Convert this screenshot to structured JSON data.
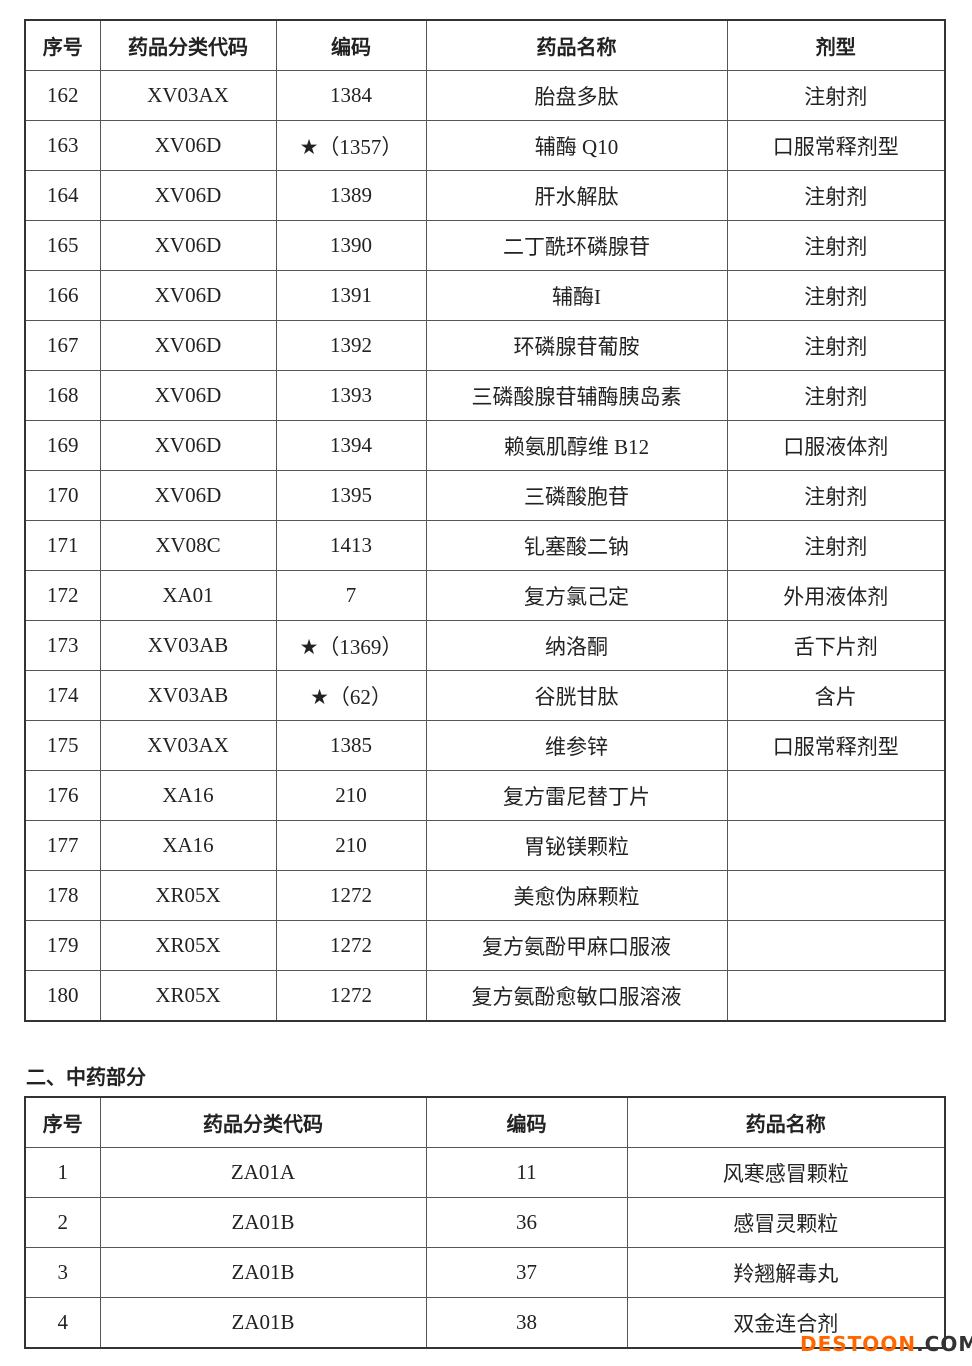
{
  "table1": {
    "headers": [
      "序号",
      "药品分类代码",
      "编码",
      "药品名称",
      "剂型"
    ],
    "rows": [
      [
        "162",
        "XV03AX",
        "1384",
        "胎盘多肽",
        "注射剂"
      ],
      [
        "163",
        "XV06D",
        "★（1357）",
        "辅酶 Q10",
        "口服常释剂型"
      ],
      [
        "164",
        "XV06D",
        "1389",
        "肝水解肽",
        "注射剂"
      ],
      [
        "165",
        "XV06D",
        "1390",
        "二丁酰环磷腺苷",
        "注射剂"
      ],
      [
        "166",
        "XV06D",
        "1391",
        "辅酶I",
        "注射剂"
      ],
      [
        "167",
        "XV06D",
        "1392",
        "环磷腺苷葡胺",
        "注射剂"
      ],
      [
        "168",
        "XV06D",
        "1393",
        "三磷酸腺苷辅酶胰岛素",
        "注射剂"
      ],
      [
        "169",
        "XV06D",
        "1394",
        "赖氨肌醇维 B12",
        "口服液体剂"
      ],
      [
        "170",
        "XV06D",
        "1395",
        "三磷酸胞苷",
        "注射剂"
      ],
      [
        "171",
        "XV08C",
        "1413",
        "钆塞酸二钠",
        "注射剂"
      ],
      [
        "172",
        "XA01",
        "7",
        "复方氯己定",
        "外用液体剂"
      ],
      [
        "173",
        "XV03AB",
        "★（1369）",
        "纳洛酮",
        "舌下片剂"
      ],
      [
        "174",
        "XV03AB",
        "★（62）",
        "谷胱甘肽",
        "含片"
      ],
      [
        "175",
        "XV03AX",
        "1385",
        "维参锌",
        "口服常释剂型"
      ],
      [
        "176",
        "XA16",
        "210",
        "复方雷尼替丁片",
        ""
      ],
      [
        "177",
        "XA16",
        "210",
        "胃铋镁颗粒",
        ""
      ],
      [
        "178",
        "XR05X",
        "1272",
        "美愈伪麻颗粒",
        ""
      ],
      [
        "179",
        "XR05X",
        "1272",
        "复方氨酚甲麻口服液",
        ""
      ],
      [
        "180",
        "XR05X",
        "1272",
        "复方氨酚愈敏口服溶液",
        ""
      ]
    ]
  },
  "section2_title": "二、中药部分",
  "table2": {
    "headers": [
      "序号",
      "药品分类代码",
      "编码",
      "药品名称"
    ],
    "rows": [
      [
        "1",
        "ZA01A",
        "11",
        "风寒感冒颗粒"
      ],
      [
        "2",
        "ZA01B",
        "36",
        "感冒灵颗粒"
      ],
      [
        "3",
        "ZA01B",
        "37",
        "羚翘解毒丸"
      ],
      [
        "4",
        "ZA01B",
        "38",
        "双金连合剂"
      ]
    ]
  },
  "watermark": {
    "part1": "DESTOON",
    "part2": ".COM",
    "color1": "#ff6600",
    "color2": "#333333"
  }
}
